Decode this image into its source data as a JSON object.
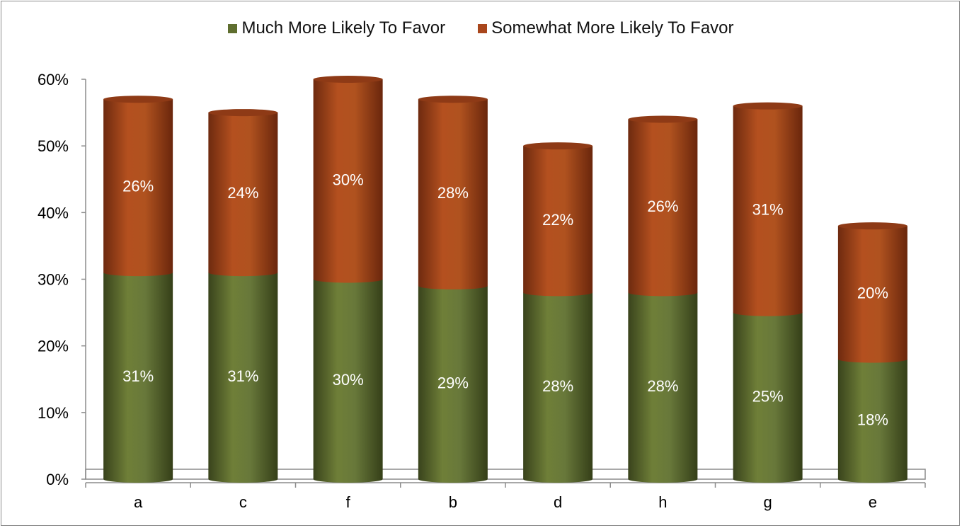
{
  "chart_data": {
    "type": "bar",
    "stacked": true,
    "style": "3d-cylinder",
    "categories": [
      "a",
      "c",
      "f",
      "b",
      "d",
      "h",
      "g",
      "e"
    ],
    "series": [
      {
        "name": "Much More Likely To Favor",
        "values": [
          31,
          31,
          30,
          29,
          28,
          28,
          25,
          18
        ],
        "labels": [
          "31%",
          "31%",
          "30%",
          "29%",
          "28%",
          "28%",
          "25%",
          "18%"
        ],
        "color": "#5f6e2f"
      },
      {
        "name": "Somewhat More Likely To Favor",
        "values": [
          26,
          24,
          30,
          28,
          22,
          26,
          31,
          20
        ],
        "labels": [
          "26%",
          "24%",
          "30%",
          "28%",
          "22%",
          "26%",
          "31%",
          "20%"
        ],
        "color": "#a9461c"
      }
    ],
    "ylim": [
      0,
      60
    ],
    "yticks": [
      0,
      10,
      20,
      30,
      40,
      50,
      60
    ],
    "ytick_labels": [
      "0%",
      "10%",
      "20%",
      "30%",
      "40%",
      "50%",
      "60%"
    ],
    "grid": false,
    "legend_position": "top-center"
  }
}
